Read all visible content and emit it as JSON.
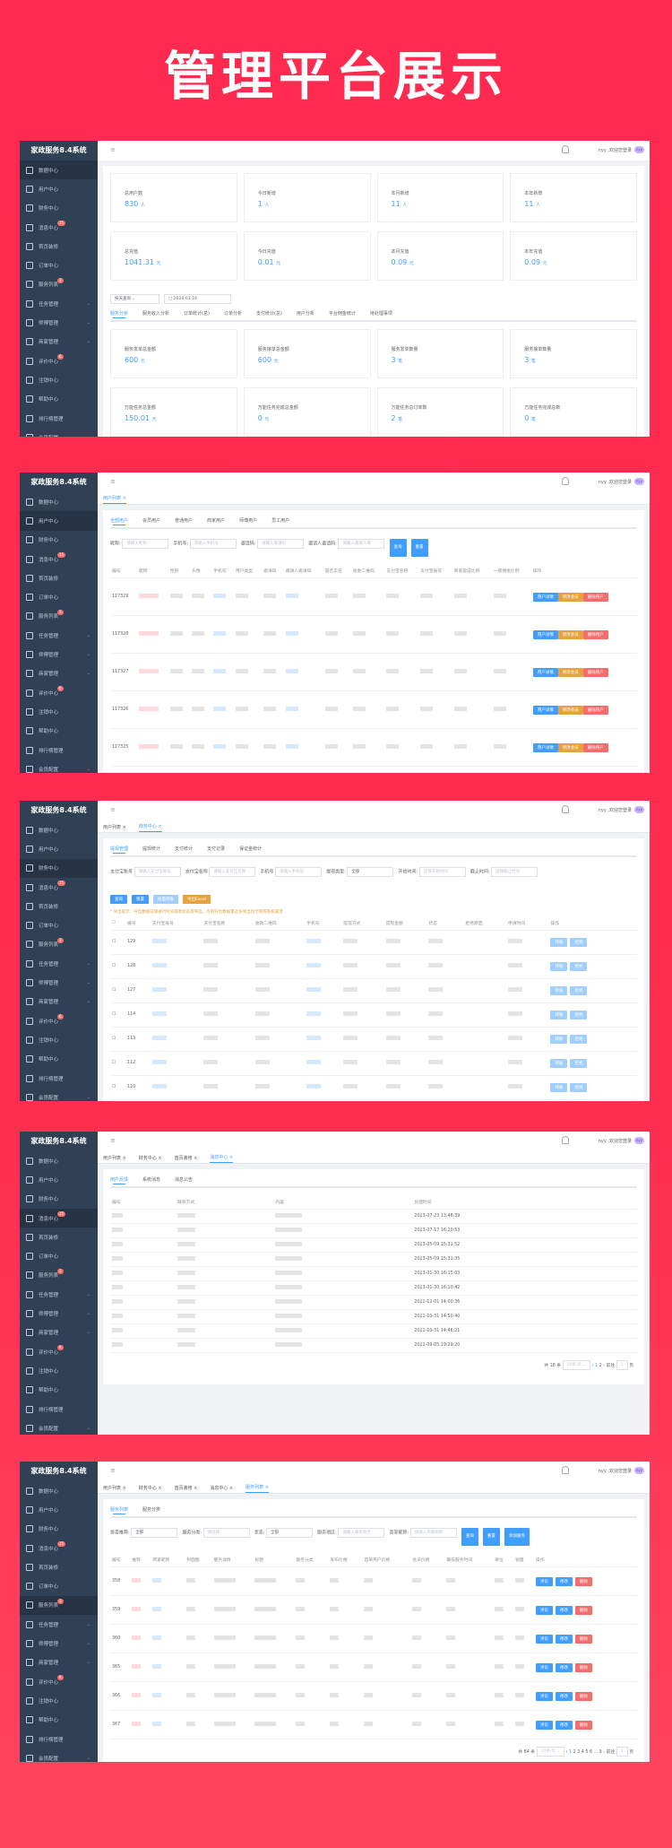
{
  "hero_title": "管理平台展示",
  "app": {
    "logo": "家政服务8.4系统",
    "user_greeting": "nyy ,欢迎您登录",
    "avatar_text": "nyy"
  },
  "sidebar": [
    {
      "label": "数据中心",
      "icon": "dashboard-icon"
    },
    {
      "label": "用户中心",
      "icon": "user-icon"
    },
    {
      "label": "财务中心",
      "icon": "wallet-icon"
    },
    {
      "label": "消息中心",
      "icon": "message-icon",
      "badge": "15"
    },
    {
      "label": "首页装修",
      "icon": "cube-icon"
    },
    {
      "label": "订单中心",
      "icon": "document-icon"
    },
    {
      "label": "服务列表",
      "icon": "clipboard-icon",
      "badge": "3"
    },
    {
      "label": "任务管理",
      "icon": "task-icon",
      "expandable": true
    },
    {
      "label": "师傅管理",
      "icon": "worker-icon",
      "expandable": true
    },
    {
      "label": "商家管理",
      "icon": "merchant-icon",
      "expandable": true
    },
    {
      "label": "评价中心",
      "icon": "comment-icon",
      "badge": "6"
    },
    {
      "label": "注销中心",
      "icon": "logout-icon"
    },
    {
      "label": "帮助中心",
      "icon": "list-icon"
    },
    {
      "label": "排行榜管理",
      "icon": "chart-icon"
    },
    {
      "label": "会员配置",
      "icon": "settings-icon",
      "expandable": true
    }
  ],
  "panel1": {
    "stats_row1": [
      {
        "label": "总用户数",
        "value": "830",
        "unit": "人"
      },
      {
        "label": "今日新增",
        "value": "1",
        "unit": "人"
      },
      {
        "label": "本月新增",
        "value": "11",
        "unit": "人"
      },
      {
        "label": "本年新增",
        "value": "11",
        "unit": "人"
      }
    ],
    "stats_row2": [
      {
        "label": "总充值",
        "value": "1041.31",
        "unit": "元"
      },
      {
        "label": "今日充值",
        "value": "0.01",
        "unit": "元"
      },
      {
        "label": "本月充值",
        "value": "0.09",
        "unit": "元"
      },
      {
        "label": "本年充值",
        "value": "0.09",
        "unit": "元"
      }
    ],
    "query_select": "按天查询",
    "date": "2024-01-16",
    "tabs": [
      "服务分析",
      "服务收入分析",
      "订单统计(总)",
      "订单分析",
      "支付统计(总)",
      "用户分析",
      "平台佣金统计",
      "待处理事项"
    ],
    "stats_row3": [
      {
        "label": "服务发单总金额",
        "value": "600",
        "unit": "元"
      },
      {
        "label": "服务接单总金额",
        "value": "600",
        "unit": "元"
      },
      {
        "label": "服务发单数量",
        "value": "3",
        "unit": "笔"
      },
      {
        "label": "服务接单数量",
        "value": "3",
        "unit": "笔"
      }
    ],
    "stats_row4": [
      {
        "label": "万能任务总金额",
        "value": "150.01",
        "unit": "元"
      },
      {
        "label": "万能任务完成总金额",
        "value": "0",
        "unit": "元"
      },
      {
        "label": "万能任务总订单数",
        "value": "2",
        "unit": "笔"
      },
      {
        "label": "万能任务完成总数",
        "value": "0",
        "unit": "笔"
      }
    ]
  },
  "panel2": {
    "tags": [
      "用户列表"
    ],
    "tabs": [
      "全部用户",
      "会员用户",
      "普通用户",
      "商家用户",
      "师傅用户",
      "员工用户"
    ],
    "filters": [
      {
        "label": "昵称:",
        "placeholder": "请输入昵称"
      },
      {
        "label": "手机号:",
        "placeholder": "请输入手机号"
      },
      {
        "label": "邀请码:",
        "placeholder": "请输入邀请码"
      },
      {
        "label": "邀请人邀请码:",
        "placeholder": "请输入邀请人邀"
      }
    ],
    "buttons": {
      "query": "查询",
      "reset": "重置"
    },
    "columns": [
      "编号",
      "昵称",
      "性别",
      "头像",
      "手机号",
      "用户类型",
      "邀请码",
      "邀请人邀请码",
      "是否实名",
      "收款二维码",
      "支付宝名称",
      "支付宝账号",
      "商家提成比例",
      "一级佣金比例",
      "操作"
    ],
    "rows": [
      "117329",
      "117328",
      "117327",
      "117326",
      "117325"
    ],
    "row_actions": [
      "用户详情",
      "修改会员",
      "删除用户"
    ]
  },
  "panel3": {
    "tags": [
      "用户列表",
      "财务中心"
    ],
    "tabs": [
      "提现管理",
      "提现统计",
      "支付统计",
      "支付记录",
      "保证金统计"
    ],
    "filters": [
      {
        "label": "支付宝账号",
        "placeholder": "请输入支付宝账号"
      },
      {
        "label": "支付宝名称",
        "placeholder": "请输入支付宝名称"
      },
      {
        "label": "手机号",
        "placeholder": "请输入手机号"
      },
      {
        "label": "提现类型:",
        "value": "全部"
      },
      {
        "label": "开始时间:",
        "placeholder": "选择开始时间"
      },
      {
        "label": "截止时间:",
        "placeholder": "选择截止时间"
      }
    ],
    "buttons": {
      "query": "查询",
      "reset": "重置",
      "batch": "批量转账",
      "export": "导出Excel"
    },
    "warning": "* 导出提示：导出数据前请进行时间或者状态等筛选，否则导出数据量过多易出现卡顿或系统崩溃",
    "columns": [
      "编号",
      "支付宝账号",
      "支付宝名称",
      "收款二维码",
      "手机号",
      "提现方式",
      "提现金额",
      "状态",
      "拒绝原因",
      "申请时间",
      "操作"
    ],
    "rows": [
      "129",
      "128",
      "127",
      "114",
      "113",
      "112",
      "110"
    ],
    "row_actions": [
      "转账",
      "拒绝"
    ]
  },
  "panel4": {
    "tags": [
      "用户列表",
      "财务中心",
      "首页装修",
      "消息中心"
    ],
    "tabs": [
      "用户反馈",
      "系统消息",
      "消息公告"
    ],
    "columns": [
      "编号",
      "联系方式",
      "内容",
      "创建时间"
    ],
    "times": [
      "2023-07-23 13:46:39",
      "2023-07-17 16:20:53",
      "2023-05-09 15:31:52",
      "2023-05-09 15:31:35",
      "2023-01-30 16:15:03",
      "2023-01-30 16:10:42",
      "2022-12-01 14:00:36",
      "2022-10-31 14:50:40",
      "2022-10-31 14:46:21",
      "2022-09-05 19:29:20"
    ],
    "pager": {
      "total": "共 18 条",
      "size": "10条/页",
      "pages": [
        "1",
        "2"
      ],
      "goto": "前往",
      "page": "1",
      "suffix": "页"
    }
  },
  "panel5": {
    "tags": [
      "用户列表",
      "财务中心",
      "首页装修",
      "消息中心",
      "服务列表"
    ],
    "tabs": [
      "服务列表",
      "服务分类"
    ],
    "filters": [
      {
        "label": "是否推荐:",
        "value": "全部"
      },
      {
        "label": "服务分类:",
        "placeholder": "请选择"
      },
      {
        "label": "状态:",
        "value": "全部"
      },
      {
        "label": "服务地区:",
        "placeholder": "请输入服务地区"
      },
      {
        "label": "商家昵称:",
        "placeholder": "请输入商家昵称"
      }
    ],
    "buttons": {
      "query": "查询",
      "reset": "重置",
      "add": "添加服务"
    },
    "columns": [
      "编号",
      "推荐",
      "商家昵称",
      "封面图",
      "服务详情",
      "标题",
      "服务分类",
      "发布价格",
      "首单用户价格",
      "会员价格",
      "最低服务时间",
      "单位",
      "销量",
      "操作"
    ],
    "rows": [
      "358",
      "359",
      "360",
      "365",
      "366",
      "367"
    ],
    "row_actions": [
      "评论",
      "修改",
      "删除"
    ],
    "pager": {
      "total": "共 84 条",
      "size": "10条/页",
      "pages": [
        "1",
        "2",
        "3",
        "4",
        "5",
        "6",
        "...",
        "9"
      ],
      "goto": "前往",
      "page": "1",
      "suffix": "页"
    }
  }
}
